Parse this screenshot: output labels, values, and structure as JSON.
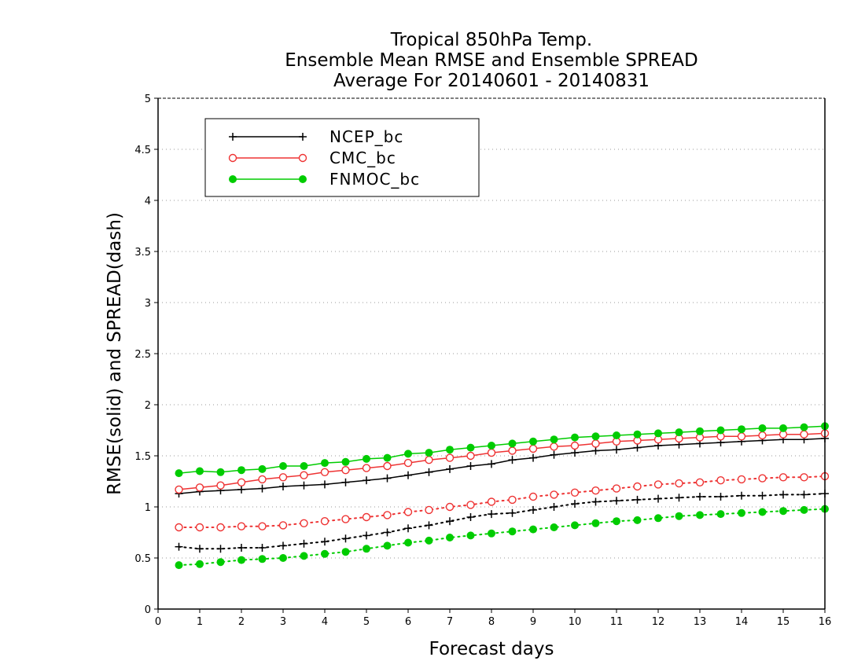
{
  "chart_data": {
    "type": "line",
    "title": [
      "Tropical 850hPa Temp.",
      "Ensemble Mean RMSE and Ensemble SPREAD",
      "Average For 20140601 - 20140831"
    ],
    "xlabel": "Forecast days",
    "ylabel": "RMSE(solid) and SPREAD(dash)",
    "xlim": [
      0,
      16
    ],
    "ylim": [
      0,
      5
    ],
    "xticks": [
      "0",
      "1",
      "2",
      "3",
      "4",
      "5",
      "6",
      "7",
      "8",
      "9",
      "10",
      "11",
      "12",
      "13",
      "14",
      "15",
      "16"
    ],
    "yticks": [
      "0",
      "0.5",
      "1",
      "1.5",
      "2",
      "2.5",
      "3",
      "3.5",
      "4",
      "4.5",
      "5"
    ],
    "grid": true,
    "legend_position": "top-left",
    "x": [
      0.5,
      1,
      1.5,
      2,
      2.5,
      3,
      3.5,
      4,
      4.5,
      5,
      5.5,
      6,
      6.5,
      7,
      7.5,
      8,
      8.5,
      9,
      9.5,
      10,
      10.5,
      11,
      11.5,
      12,
      12.5,
      13,
      13.5,
      14,
      14.5,
      15,
      15.5,
      16
    ],
    "series": [
      {
        "name": "NCEP_bc",
        "color": "#000000",
        "marker": "plus",
        "style": "solid",
        "metric": "RMSE",
        "values": [
          1.13,
          1.15,
          1.16,
          1.17,
          1.18,
          1.2,
          1.21,
          1.22,
          1.24,
          1.26,
          1.28,
          1.31,
          1.34,
          1.37,
          1.4,
          1.42,
          1.46,
          1.48,
          1.51,
          1.53,
          1.55,
          1.56,
          1.58,
          1.6,
          1.61,
          1.62,
          1.63,
          1.64,
          1.65,
          1.66,
          1.66,
          1.67
        ]
      },
      {
        "name": "CMC_bc",
        "color": "#ee3333",
        "marker": "open-circle",
        "style": "solid",
        "metric": "RMSE",
        "values": [
          1.17,
          1.19,
          1.21,
          1.24,
          1.27,
          1.29,
          1.31,
          1.34,
          1.36,
          1.38,
          1.4,
          1.43,
          1.46,
          1.48,
          1.5,
          1.53,
          1.55,
          1.57,
          1.59,
          1.6,
          1.62,
          1.64,
          1.65,
          1.66,
          1.67,
          1.68,
          1.69,
          1.69,
          1.7,
          1.71,
          1.71,
          1.72
        ]
      },
      {
        "name": "FNMOC_bc",
        "color": "#00cc00",
        "marker": "filled-circle",
        "style": "solid",
        "metric": "RMSE",
        "values": [
          1.33,
          1.35,
          1.34,
          1.36,
          1.37,
          1.4,
          1.4,
          1.43,
          1.44,
          1.47,
          1.48,
          1.52,
          1.53,
          1.56,
          1.58,
          1.6,
          1.62,
          1.64,
          1.66,
          1.68,
          1.69,
          1.7,
          1.71,
          1.72,
          1.73,
          1.74,
          1.75,
          1.76,
          1.77,
          1.77,
          1.78,
          1.79
        ]
      },
      {
        "name": "NCEP_bc",
        "color": "#000000",
        "marker": "plus",
        "style": "dotted",
        "metric": "SPREAD",
        "values": [
          0.61,
          0.59,
          0.59,
          0.6,
          0.6,
          0.62,
          0.64,
          0.66,
          0.69,
          0.72,
          0.75,
          0.79,
          0.82,
          0.86,
          0.9,
          0.93,
          0.94,
          0.97,
          1.0,
          1.03,
          1.05,
          1.06,
          1.07,
          1.08,
          1.09,
          1.1,
          1.1,
          1.11,
          1.11,
          1.12,
          1.12,
          1.13
        ]
      },
      {
        "name": "CMC_bc",
        "color": "#ee3333",
        "marker": "open-circle",
        "style": "dotted",
        "metric": "SPREAD",
        "values": [
          0.8,
          0.8,
          0.8,
          0.81,
          0.81,
          0.82,
          0.84,
          0.86,
          0.88,
          0.9,
          0.92,
          0.95,
          0.97,
          1.0,
          1.02,
          1.05,
          1.07,
          1.1,
          1.12,
          1.14,
          1.16,
          1.18,
          1.2,
          1.22,
          1.23,
          1.24,
          1.26,
          1.27,
          1.28,
          1.29,
          1.29,
          1.3
        ]
      },
      {
        "name": "FNMOC_bc",
        "color": "#00cc00",
        "marker": "filled-circle",
        "style": "dotted",
        "metric": "SPREAD",
        "values": [
          0.43,
          0.44,
          0.46,
          0.48,
          0.49,
          0.5,
          0.52,
          0.54,
          0.56,
          0.59,
          0.62,
          0.65,
          0.67,
          0.7,
          0.72,
          0.74,
          0.76,
          0.78,
          0.8,
          0.82,
          0.84,
          0.86,
          0.87,
          0.89,
          0.91,
          0.92,
          0.93,
          0.94,
          0.95,
          0.96,
          0.97,
          0.98
        ]
      }
    ],
    "legend": [
      {
        "label": "NCEP_bc",
        "color": "#000000",
        "marker": "plus"
      },
      {
        "label": "CMC_bc",
        "color": "#ee3333",
        "marker": "open-circle"
      },
      {
        "label": "FNMOC_bc",
        "color": "#00cc00",
        "marker": "filled-circle"
      }
    ]
  }
}
